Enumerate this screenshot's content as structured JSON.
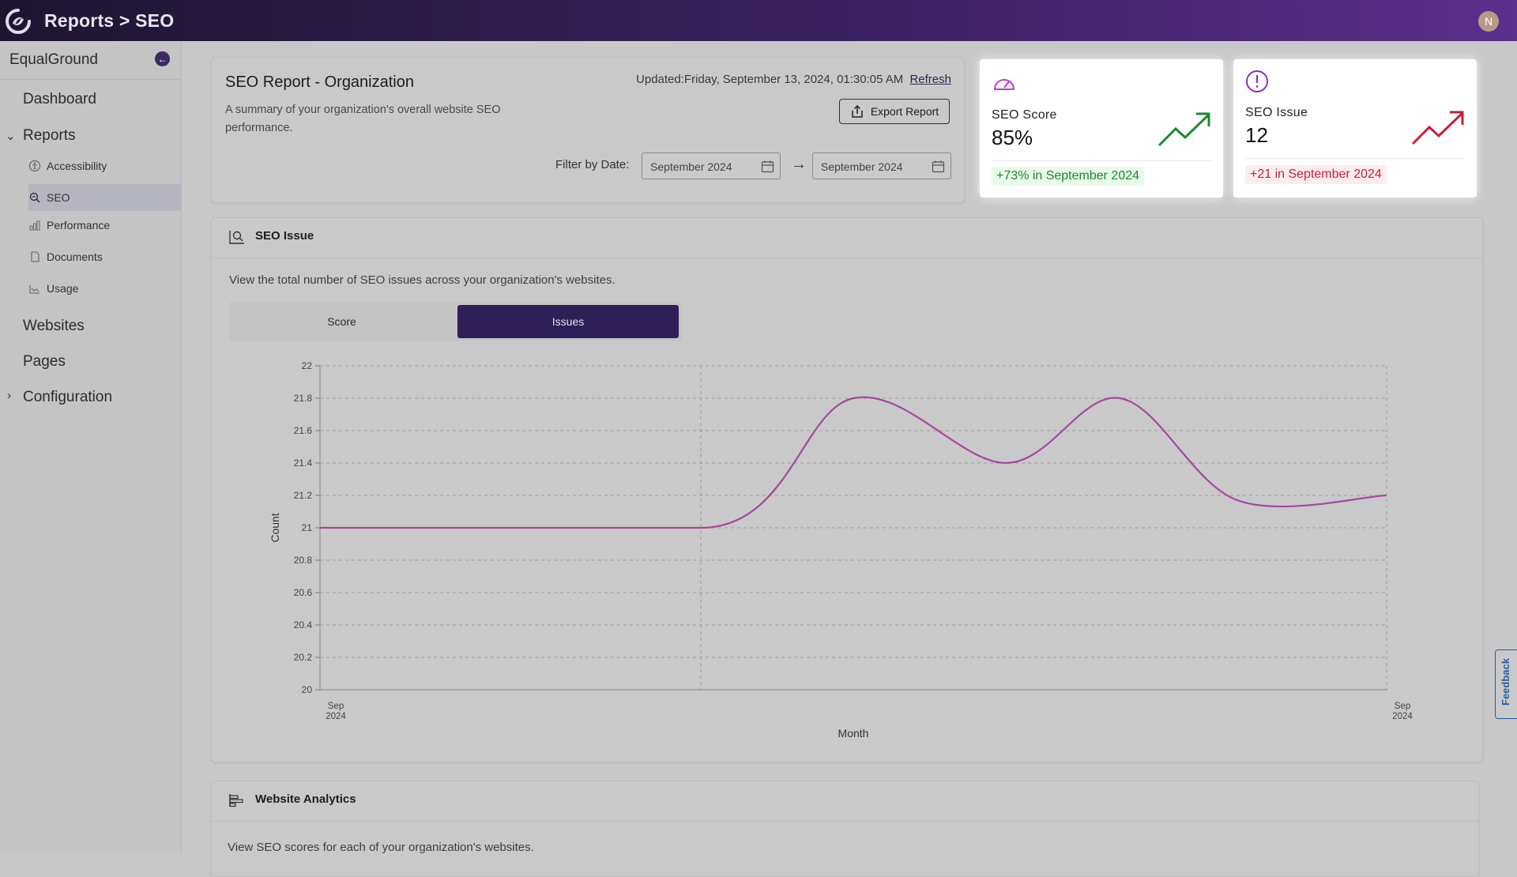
{
  "topbar": {
    "breadcrumb": "Reports > SEO",
    "avatar_initial": "N",
    "logo": "app-logo"
  },
  "sidebar": {
    "org_name": "EqualGround",
    "dashboard": "Dashboard",
    "reports": "Reports",
    "report_items": [
      {
        "label": "Accessibility",
        "icon": "accessibility-icon"
      },
      {
        "label": "SEO",
        "icon": "seo-icon",
        "active": true
      },
      {
        "label": "Performance",
        "icon": "performance-icon"
      },
      {
        "label": "Documents",
        "icon": "documents-icon"
      },
      {
        "label": "Usage",
        "icon": "usage-icon"
      }
    ],
    "websites": "Websites",
    "pages": "Pages",
    "configuration": "Configuration"
  },
  "report": {
    "title": "SEO Report - Organization",
    "description": "A summary of your organization's overall website SEO performance.",
    "updated_prefix": "Updated:",
    "updated_value": "Friday, September 13, 2024, 01:30:05 AM",
    "refresh": "Refresh",
    "export": "Export Report",
    "filter_label": "Filter by Date:",
    "date_from": "September 2024",
    "date_to": "September 2024"
  },
  "cards": {
    "score": {
      "label": "SEO Score",
      "value": "85%",
      "change": "+73% in September 2024"
    },
    "issue": {
      "label": "SEO Issue",
      "value": "12",
      "change": "+21 in September 2024"
    }
  },
  "issue_section": {
    "title": "SEO Issue",
    "description": "View the total number of SEO issues across your organization's websites.",
    "tab_score": "Score",
    "tab_issues": "Issues"
  },
  "analytics_section": {
    "title": "Website Analytics",
    "description": "View SEO scores for each of your organization's websites."
  },
  "feedback": "Feedback",
  "chart_data": {
    "type": "line",
    "title": "",
    "xlabel": "Month",
    "ylabel": "Count",
    "x_tick_labels": [
      [
        "Sep",
        "2024"
      ],
      [
        "Sep",
        "2024"
      ]
    ],
    "y_ticks": [
      "20",
      "20.2",
      "20.4",
      "20.6",
      "20.8",
      "21",
      "21.2",
      "21.4",
      "21.6",
      "21.8",
      "22"
    ],
    "ylim": [
      20,
      22
    ],
    "grid": true,
    "series": [
      {
        "name": "Issues",
        "color": "#a6479f",
        "x": [
          0,
          0.357,
          0.5,
          0.643,
          0.75,
          0.86,
          1.0
        ],
        "values": [
          21,
          21,
          21.8,
          21.4,
          21.8,
          21.17,
          21.2
        ]
      }
    ]
  }
}
